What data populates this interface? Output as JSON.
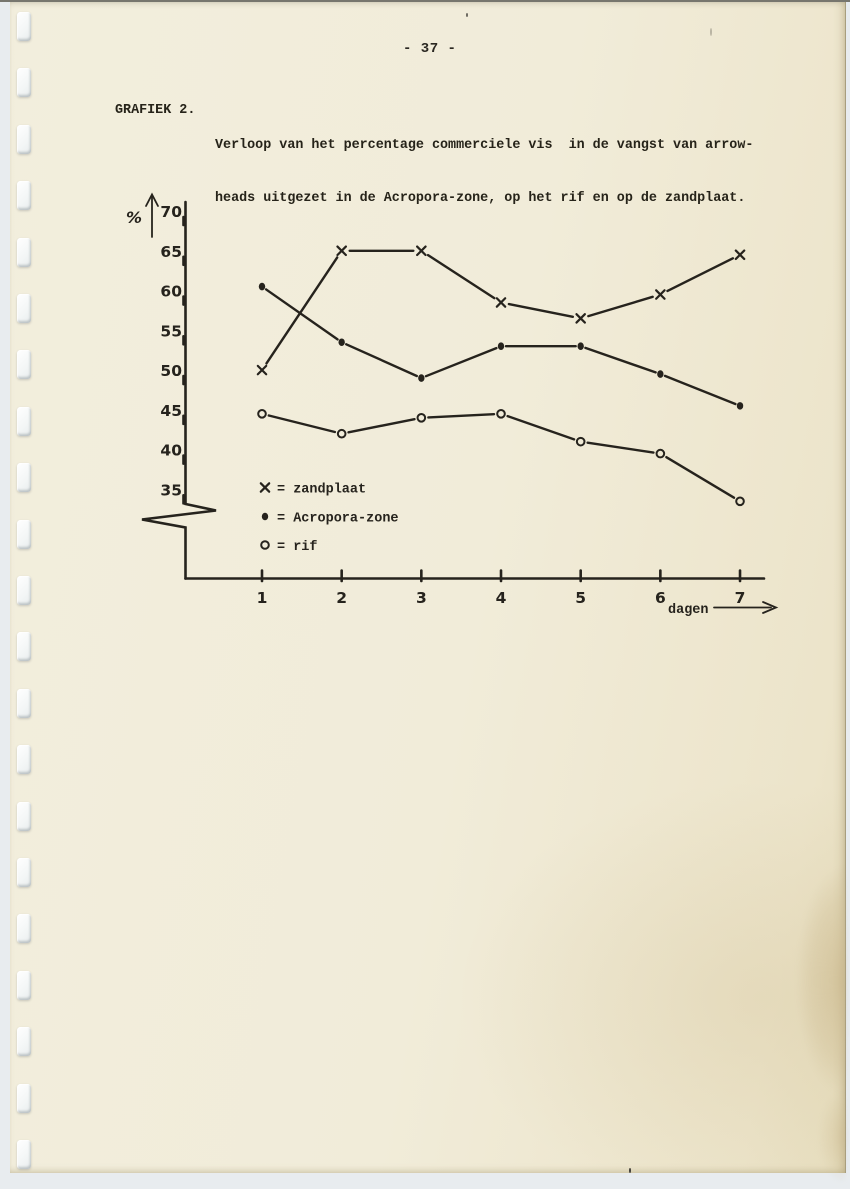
{
  "page": {
    "number_label": "- 37 -",
    "figure_label": "GRAFIEK 2.",
    "caption_lines": [
      "Verloop van het percentage commerciele vis  in de vangst van arrow-",
      "heads uitgezet in de Acropora-zone, op het rif en op de zandplaat."
    ]
  },
  "chart_data": {
    "type": "line",
    "title": "GRAFIEK 2. Verloop van het percentage commerciele vis in de vangst van arrowheads uitgezet in de Acropora-zone, op het rif en op de zandplaat.",
    "xlabel": "dagen",
    "ylabel": "%",
    "x": [
      1,
      2,
      3,
      4,
      5,
      6,
      7
    ],
    "xtick_labels": [
      "1",
      "2",
      "3",
      "4",
      "5",
      "6",
      "7"
    ],
    "yticks": [
      70,
      65,
      60,
      55,
      50,
      45,
      40,
      35
    ],
    "ylim": [
      33,
      71
    ],
    "y_axis_break_below": 35,
    "grid": false,
    "legend_position": "inside-bottom-left",
    "series": [
      {
        "name": "zandplaat",
        "marker": "x",
        "values": [
          50.5,
          65.5,
          65.5,
          59,
          57,
          60,
          65
        ]
      },
      {
        "name": "Acropora-zone",
        "marker": "filled-circle",
        "values": [
          61,
          54,
          49.5,
          53.5,
          53.5,
          50,
          46
        ]
      },
      {
        "name": "rif",
        "marker": "open-circle",
        "values": [
          45,
          42.5,
          44.5,
          45,
          41.5,
          40,
          34
        ]
      }
    ],
    "legend": [
      {
        "marker_glyph": "x",
        "label": "zandplaat"
      },
      {
        "marker_glyph": "●",
        "label": "Acropora-zone"
      },
      {
        "marker_glyph": "o",
        "label": "rif"
      }
    ],
    "colors": {
      "ink": "#26231d",
      "paper": "#f2edda"
    }
  }
}
